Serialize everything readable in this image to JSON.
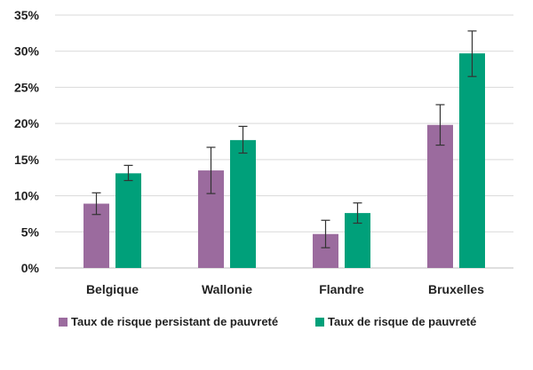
{
  "chart_data": {
    "type": "bar",
    "categories": [
      "Belgique",
      "Wallonie",
      "Flandre",
      "Bruxelles"
    ],
    "series": [
      {
        "name": "Taux de risque persistant de pauvreté",
        "color": "#9b6b9e",
        "values": [
          8.9,
          13.5,
          4.7,
          19.8
        ],
        "error_low": [
          7.4,
          10.3,
          2.8,
          17.0
        ],
        "error_high": [
          10.4,
          16.7,
          6.6,
          22.6
        ]
      },
      {
        "name": "Taux de risque de pauvreté",
        "color": "#00a07a",
        "values": [
          13.1,
          17.7,
          7.6,
          29.7
        ],
        "error_low": [
          12.1,
          15.9,
          6.2,
          26.5
        ],
        "error_high": [
          14.2,
          19.6,
          9.0,
          32.8
        ]
      }
    ],
    "ylim": [
      0,
      35
    ],
    "yticks": [
      "0%",
      "5%",
      "10%",
      "15%",
      "20%",
      "25%",
      "30%",
      "35%"
    ],
    "ytick_values": [
      0,
      5,
      10,
      15,
      20,
      25,
      30,
      35
    ],
    "grid": true,
    "legend": "bottom",
    "title": "",
    "xlabel": "",
    "ylabel": ""
  }
}
